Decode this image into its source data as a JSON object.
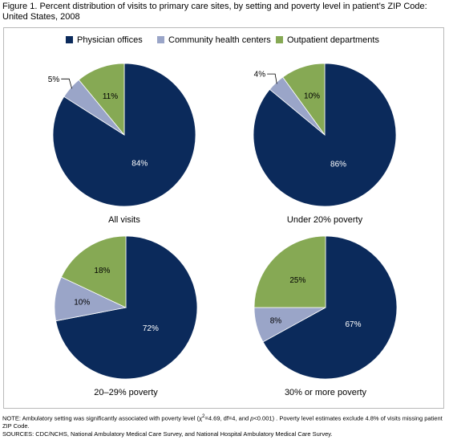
{
  "title_line1": "Figure 1. Percent distribution of visits to primary care sites, by setting and poverty level in patient’s ZIP Code:",
  "title_line2": "United States, 2008",
  "colors": {
    "Physician offices": "#0b2a5b",
    "Community health centers": "#9aa5c8",
    "Outpatient departments": "#86a954"
  },
  "chart_data": {
    "type": "pie",
    "legend": [
      "Physician offices",
      "Community health centers",
      "Outpatient departments"
    ],
    "legend_position": "top",
    "pies": [
      {
        "name": "All visits",
        "labels": [
          "Physician offices",
          "Community health centers",
          "Outpatient departments"
        ],
        "values": [
          84,
          5,
          11
        ],
        "value_labels": [
          "84%",
          "5%",
          "11%"
        ]
      },
      {
        "name": "Under 20% poverty",
        "labels": [
          "Physician offices",
          "Community health centers",
          "Outpatient departments"
        ],
        "values": [
          86,
          4,
          10
        ],
        "value_labels": [
          "86%",
          "4%",
          "10%"
        ]
      },
      {
        "name": "20–29% poverty",
        "labels": [
          "Physician offices",
          "Community health centers",
          "Outpatient departments"
        ],
        "values": [
          72,
          10,
          18
        ],
        "value_labels": [
          "72%",
          "10%",
          "18%"
        ]
      },
      {
        "name": "30% or more poverty",
        "labels": [
          "Physician offices",
          "Community health centers",
          "Outpatient departments"
        ],
        "values": [
          67,
          8,
          25
        ],
        "value_labels": [
          "67%",
          "8%",
          "25%"
        ]
      }
    ]
  },
  "note": {
    "line1_pre": "NOTE: Ambulatory setting was significantly associated with poverty level (χ",
    "sup": "2",
    "line1_mid": "=4.69, df=4, and ",
    "p_italic": "p",
    "line1_post": "<0.001) . Poverty level estimates exclude 4.8% of visits missing patient ZIP Code.",
    "sources": "SOURCES: CDC/NCHS, National Ambulatory Medical Care Survey, and National Hospital Ambulatory Medical Care Survey."
  }
}
